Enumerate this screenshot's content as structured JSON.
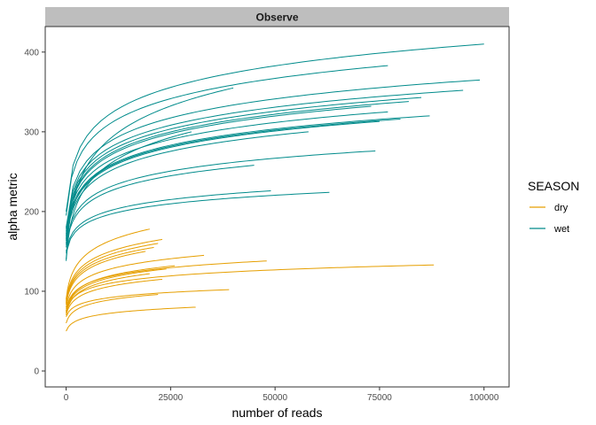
{
  "chart_data": {
    "type": "line",
    "facet": "Observe",
    "xlabel": "number of reads",
    "ylabel": "alpha metric",
    "xlim": [
      -5000,
      106000
    ],
    "ylim": [
      -20,
      432
    ],
    "xticks": [
      0,
      25000,
      50000,
      75000,
      100000
    ],
    "xtick_labels": [
      "0",
      "25000",
      "50000",
      "75000",
      "100000"
    ],
    "yticks": [
      0,
      100,
      200,
      300,
      400
    ],
    "ytick_labels": [
      "0",
      "100",
      "200",
      "300",
      "400"
    ],
    "grid": false,
    "legend": {
      "title": "SEASON",
      "position": "right",
      "entries": [
        {
          "label": "dry",
          "color": "#E69F00"
        },
        {
          "label": "wet",
          "color": "#008B8B"
        }
      ]
    },
    "series": [
      {
        "group": "wet",
        "start": 200,
        "end": 410,
        "maxReads": 100000
      },
      {
        "group": "wet",
        "start": 195,
        "end": 383,
        "maxReads": 77000
      },
      {
        "group": "wet",
        "start": 180,
        "end": 365,
        "maxReads": 99000
      },
      {
        "group": "wet",
        "start": 178,
        "end": 352,
        "maxReads": 95000
      },
      {
        "group": "wet",
        "start": 175,
        "end": 343,
        "maxReads": 85000
      },
      {
        "group": "wet",
        "start": 172,
        "end": 338,
        "maxReads": 82000
      },
      {
        "group": "wet",
        "start": 170,
        "end": 332,
        "maxReads": 73000
      },
      {
        "group": "wet",
        "start": 168,
        "end": 325,
        "maxReads": 77000
      },
      {
        "group": "wet",
        "start": 166,
        "end": 320,
        "maxReads": 87000
      },
      {
        "group": "wet",
        "start": 165,
        "end": 316,
        "maxReads": 80000
      },
      {
        "group": "wet",
        "start": 163,
        "end": 313,
        "maxReads": 75000
      },
      {
        "group": "wet",
        "start": 160,
        "end": 300,
        "maxReads": 58000
      },
      {
        "group": "wet",
        "start": 158,
        "end": 276,
        "maxReads": 74000
      },
      {
        "group": "wet",
        "start": 155,
        "end": 258,
        "maxReads": 45000
      },
      {
        "group": "wet",
        "start": 150,
        "end": 226,
        "maxReads": 49000
      },
      {
        "group": "wet",
        "start": 148,
        "end": 224,
        "maxReads": 63000
      },
      {
        "group": "wet",
        "start": 140,
        "end": 355,
        "maxReads": 40000
      },
      {
        "group": "wet",
        "start": 138,
        "end": 300,
        "maxReads": 30000
      },
      {
        "group": "dry",
        "start": 90,
        "end": 178,
        "maxReads": 20000
      },
      {
        "group": "dry",
        "start": 88,
        "end": 165,
        "maxReads": 23000
      },
      {
        "group": "dry",
        "start": 86,
        "end": 160,
        "maxReads": 22000
      },
      {
        "group": "dry",
        "start": 85,
        "end": 155,
        "maxReads": 21000
      },
      {
        "group": "dry",
        "start": 83,
        "end": 150,
        "maxReads": 19000
      },
      {
        "group": "dry",
        "start": 80,
        "end": 145,
        "maxReads": 33000
      },
      {
        "group": "dry",
        "start": 78,
        "end": 138,
        "maxReads": 48000
      },
      {
        "group": "dry",
        "start": 76,
        "end": 133,
        "maxReads": 88000
      },
      {
        "group": "dry",
        "start": 75,
        "end": 132,
        "maxReads": 26000
      },
      {
        "group": "dry",
        "start": 74,
        "end": 128,
        "maxReads": 24000
      },
      {
        "group": "dry",
        "start": 72,
        "end": 122,
        "maxReads": 20000
      },
      {
        "group": "dry",
        "start": 70,
        "end": 115,
        "maxReads": 23000
      },
      {
        "group": "dry",
        "start": 68,
        "end": 102,
        "maxReads": 39000
      },
      {
        "group": "dry",
        "start": 60,
        "end": 96,
        "maxReads": 22000
      },
      {
        "group": "dry",
        "start": 50,
        "end": 80,
        "maxReads": 31000
      }
    ]
  }
}
